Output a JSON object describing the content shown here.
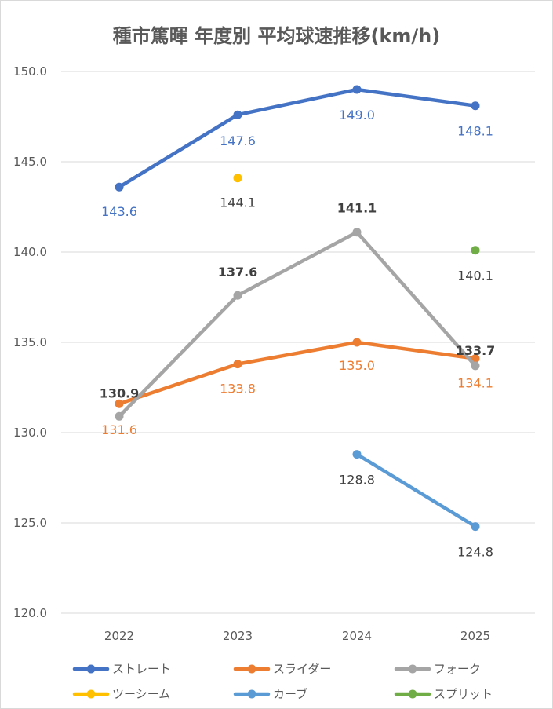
{
  "chart_data": {
    "type": "line",
    "title": "種市篤暉 年度別 平均球速推移(km/h)",
    "categories": [
      "2022",
      "2023",
      "2024",
      "2025"
    ],
    "ylim": [
      120,
      150
    ],
    "y_ticks": [
      "120.0",
      "125.0",
      "130.0",
      "135.0",
      "140.0",
      "145.0",
      "150.0"
    ],
    "grid": true,
    "legend_position": "bottom",
    "series": [
      {
        "name": "ストレート",
        "color": "#4472c4",
        "values": [
          143.6,
          147.6,
          149.0,
          148.1
        ],
        "labels": [
          "143.6",
          "147.6",
          "149.0",
          "148.1"
        ],
        "label_color": "#4472c4"
      },
      {
        "name": "スライダー",
        "color": "#ed7d31",
        "values": [
          131.6,
          133.8,
          135.0,
          134.1
        ],
        "labels": [
          "131.6",
          "133.8",
          "135.0",
          "134.1"
        ],
        "label_color": "#ed7d31"
      },
      {
        "name": "フォーク",
        "color": "#a5a5a5",
        "values": [
          130.9,
          137.6,
          141.1,
          133.7
        ],
        "labels": [
          "130.9",
          "137.6",
          "141.1",
          "133.7"
        ],
        "label_color": "#404040"
      },
      {
        "name": "ツーシーム",
        "color": "#ffc000",
        "values": [
          null,
          144.1,
          null,
          null
        ],
        "labels": [
          null,
          "144.1",
          null,
          null
        ],
        "label_color": "#404040"
      },
      {
        "name": "カーブ",
        "color": "#5b9bd5",
        "values": [
          null,
          null,
          128.8,
          124.8
        ],
        "labels": [
          null,
          null,
          "128.8",
          "124.8"
        ],
        "label_color": "#404040"
      },
      {
        "name": "スプリット",
        "color": "#70ad47",
        "values": [
          null,
          null,
          null,
          140.1
        ],
        "labels": [
          null,
          null,
          null,
          "140.1"
        ],
        "label_color": "#404040"
      }
    ]
  }
}
